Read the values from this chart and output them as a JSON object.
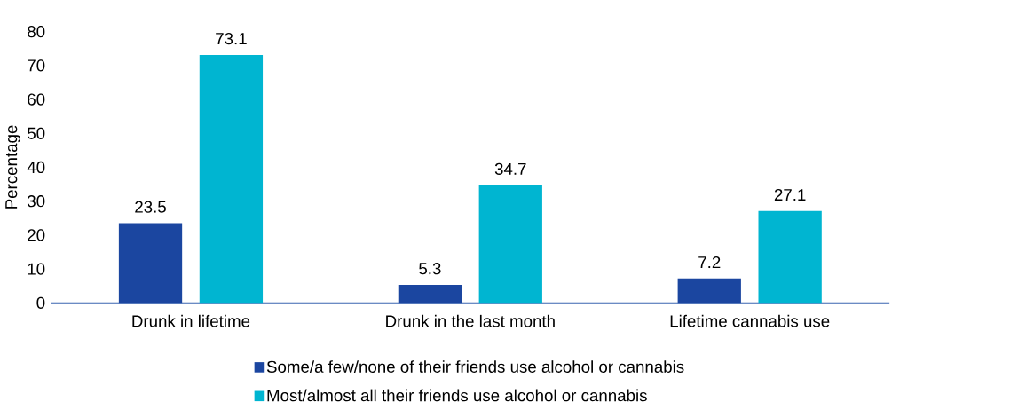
{
  "chart_data": {
    "type": "bar",
    "ylabel": "Percentage",
    "categories": [
      "Drunk in lifetime",
      "Drunk in the last month",
      "Lifetime cannabis use"
    ],
    "series": [
      {
        "name": "Some/a few/none of their friends use alcohol or cannabis",
        "color": "#1b46a0",
        "values": [
          23.5,
          5.3,
          7.2
        ]
      },
      {
        "name": "Most/almost all their friends use alcohol or cannabis",
        "color": "#00b5d1",
        "values": [
          73.1,
          34.7,
          27.1
        ]
      }
    ],
    "ylim": [
      0,
      80
    ],
    "yticks": [
      0,
      10,
      20,
      30,
      40,
      50,
      60,
      70,
      80
    ],
    "data_labels": true,
    "grid": false,
    "legend": "bottom"
  }
}
